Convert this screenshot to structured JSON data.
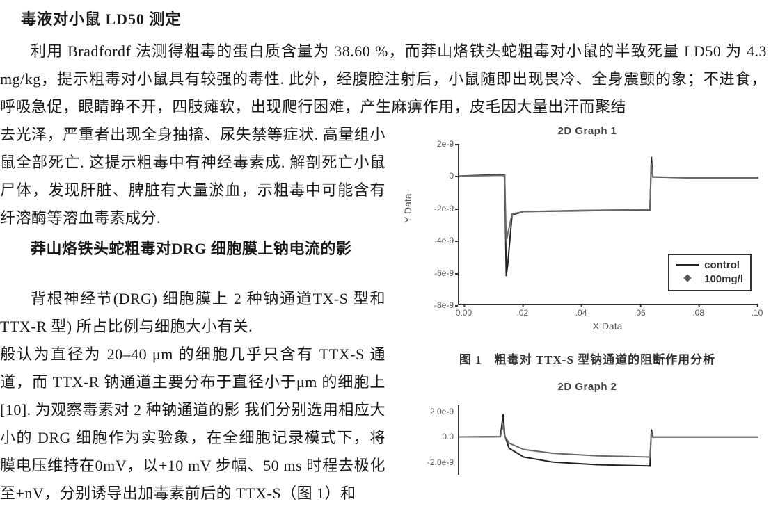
{
  "heading1": "毒液对小鼠 LD50 测定",
  "para_full": "利用 Bradfordf 法测得粗毒的蛋白质含量为 38.60 %，而莽山烙铁头蛇粗毒对小鼠的半致死量 LD50 为 4.3 mg/kg，提示粗毒对小鼠具有较强的毒性. 此外，经腹腔注射后，小鼠随即出现畏冷、全身震颤的象；不进食，呼吸急促，眼睛睁不开，四肢瘫软，出现爬行困难，产生麻痹作用，皮毛因大量出汗而聚结",
  "para_left1": "去光泽，严重者出现全身抽搐、尿失禁等症状. 高量组小鼠全部死亡. 这提示粗毒中有神经毒素成. 解剖死亡小鼠尸体，发现肝脏、脾脏有大量淤血，示粗毒中可能含有纤溶酶等溶血毒素成分.",
  "heading2": "莽山烙铁头蛇粗毒对DRG 细胞膜上钠电流的影",
  "para_left2a": "背根神经节(DRG) 细胞膜上 2 种钠通道TX-S 型和 TTX-R 型) 所占比例与细胞大小有关.",
  "para_left2b": "般认为直径为 20–40 μm 的细胞几乎只含有 TTX-S 通道，而 TTX-R 钠通道主要分布于直径小于μm 的细胞上[10]. 为观察毒素对 2 种钠通道的影 我们分别选用相应大小的 DRG 细胞作为实验象，在全细胞记录模式下，将膜电压维持在0mV，以+10 mV 步幅、50 ms 时程去极化至+nV，分别诱导出加毒素前后的 TTX-S（图 1）和",
  "chart1": {
    "title": "2D Graph 1",
    "type": "line",
    "xlabel": "X Data",
    "ylabel": "Y Data",
    "xlim": [
      -0.002,
      0.1
    ],
    "ylim": [
      -8e-09,
      2e-09
    ],
    "yticks": [
      {
        "v": 2e-09,
        "l": "2e-9"
      },
      {
        "v": 0,
        "l": "0"
      },
      {
        "v": -2e-09,
        "l": "-2e-9"
      },
      {
        "v": -4e-09,
        "l": "-4e-9"
      },
      {
        "v": -6e-09,
        "l": "-6e-9"
      },
      {
        "v": -8e-09,
        "l": "-8e-9"
      }
    ],
    "xticks": [
      {
        "v": 0.0,
        "l": "0.00"
      },
      {
        "v": 0.02,
        "l": ".02"
      },
      {
        "v": 0.04,
        "l": ".04"
      },
      {
        "v": 0.06,
        "l": ".06"
      },
      {
        "v": 0.08,
        "l": ".08"
      },
      {
        "v": 0.1,
        "l": ".10"
      }
    ],
    "series": [
      {
        "name": "control",
        "color": "#222222",
        "width": 2,
        "points": [
          [
            -0.002,
            0
          ],
          [
            0.012,
            1e-10
          ],
          [
            0.0135,
            5e-11
          ],
          [
            0.014,
            -6.2e-09
          ],
          [
            0.0145,
            -5.5e-09
          ],
          [
            0.016,
            -2.4e-09
          ],
          [
            0.02,
            -2.2e-09
          ],
          [
            0.04,
            -2.15e-09
          ],
          [
            0.06,
            -2.1e-09
          ],
          [
            0.063,
            -2.1e-09
          ],
          [
            0.0635,
            1.2e-09
          ],
          [
            0.064,
            -5e-11
          ],
          [
            0.075,
            -1e-10
          ],
          [
            0.1,
            -1e-10
          ]
        ]
      },
      {
        "name": "100mg/l",
        "color": "#6a6a6a",
        "width": 2,
        "points": [
          [
            -0.002,
            0
          ],
          [
            0.012,
            5e-11
          ],
          [
            0.0135,
            2e-11
          ],
          [
            0.014,
            -4.1e-09
          ],
          [
            0.0145,
            -3.6e-09
          ],
          [
            0.016,
            -2.35e-09
          ],
          [
            0.02,
            -2.2e-09
          ],
          [
            0.04,
            -2.12e-09
          ],
          [
            0.06,
            -2.08e-09
          ],
          [
            0.063,
            -2.08e-09
          ],
          [
            0.0635,
            8e-10
          ],
          [
            0.064,
            -5e-11
          ],
          [
            0.075,
            -8e-11
          ],
          [
            0.1,
            -8e-11
          ]
        ]
      }
    ],
    "legend": [
      {
        "swatch": "line",
        "label": "control"
      },
      {
        "swatch": "marker",
        "label": "100mg/l"
      }
    ],
    "background": "#ffffff",
    "axis_color": "#333333"
  },
  "figure1_caption": "图 1　粗毒对 TTX-S 型钠通道的阻断作用分析",
  "chart2": {
    "title": "2D Graph 2",
    "type": "line",
    "yticks": [
      {
        "v": 2e-09,
        "l": "2.0e-9"
      },
      {
        "v": 0,
        "l": "0.0"
      },
      {
        "v": -2e-09,
        "l": "-2.0e-9"
      }
    ],
    "ylim": [
      -3e-09,
      2.5e-09
    ],
    "xlim": [
      -0.002,
      0.1
    ],
    "series": [
      {
        "name": "control",
        "color": "#222222",
        "width": 2,
        "points": [
          [
            -0.002,
            0
          ],
          [
            0.012,
            2e-11
          ],
          [
            0.013,
            1.8e-09
          ],
          [
            0.0135,
            1e-10
          ],
          [
            0.015,
            -9e-10
          ],
          [
            0.02,
            -1.6e-09
          ],
          [
            0.03,
            -2e-09
          ],
          [
            0.045,
            -2.2e-09
          ],
          [
            0.063,
            -2.3e-09
          ],
          [
            0.0635,
            6e-10
          ],
          [
            0.064,
            -2e-11
          ],
          [
            0.1,
            -2e-11
          ]
        ]
      },
      {
        "name": "100mg/l",
        "color": "#6a6a6a",
        "width": 2,
        "points": [
          [
            -0.002,
            0
          ],
          [
            0.012,
            1e-11
          ],
          [
            0.013,
            1e-09
          ],
          [
            0.0135,
            5e-11
          ],
          [
            0.015,
            -5e-10
          ],
          [
            0.02,
            -1e-09
          ],
          [
            0.03,
            -1.3e-09
          ],
          [
            0.045,
            -1.5e-09
          ],
          [
            0.063,
            -1.6e-09
          ],
          [
            0.0635,
            4e-10
          ],
          [
            0.064,
            -1e-11
          ],
          [
            0.1,
            -1e-11
          ]
        ]
      }
    ]
  }
}
